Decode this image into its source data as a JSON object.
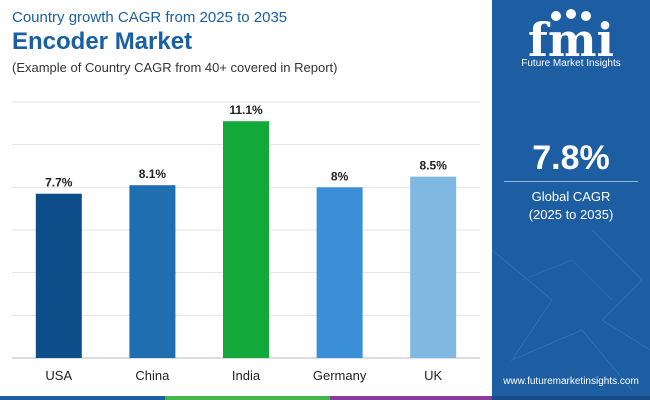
{
  "header": {
    "kicker": "Country growth CAGR from 2025 to 2035",
    "title": "Encoder Market",
    "subtitle": "(Example of Country CAGR from 40+ covered in Report)"
  },
  "chart_data": {
    "type": "bar",
    "categories": [
      "USA",
      "China",
      "India",
      "Germany",
      "UK"
    ],
    "values": [
      7.7,
      8.1,
      11.1,
      8.0,
      8.5
    ],
    "value_labels": [
      "7.7%",
      "8.1%",
      "11.1%",
      "8%",
      "8.5%"
    ],
    "colors": [
      "#0d4e8a",
      "#1f6fb0",
      "#12a83a",
      "#3a8fd6",
      "#7fb8e0"
    ],
    "ylim": [
      0,
      12
    ],
    "grid": true
  },
  "sidebar": {
    "logo_letters": "fmi",
    "brand": "Future Market Insights",
    "value": "7.8%",
    "label": "Global CAGR",
    "period": "(2025 to 2035)",
    "url": "www.futuremarketinsights.com",
    "colors": {
      "background": "#1d5ea3",
      "text": "#ffffff"
    }
  }
}
